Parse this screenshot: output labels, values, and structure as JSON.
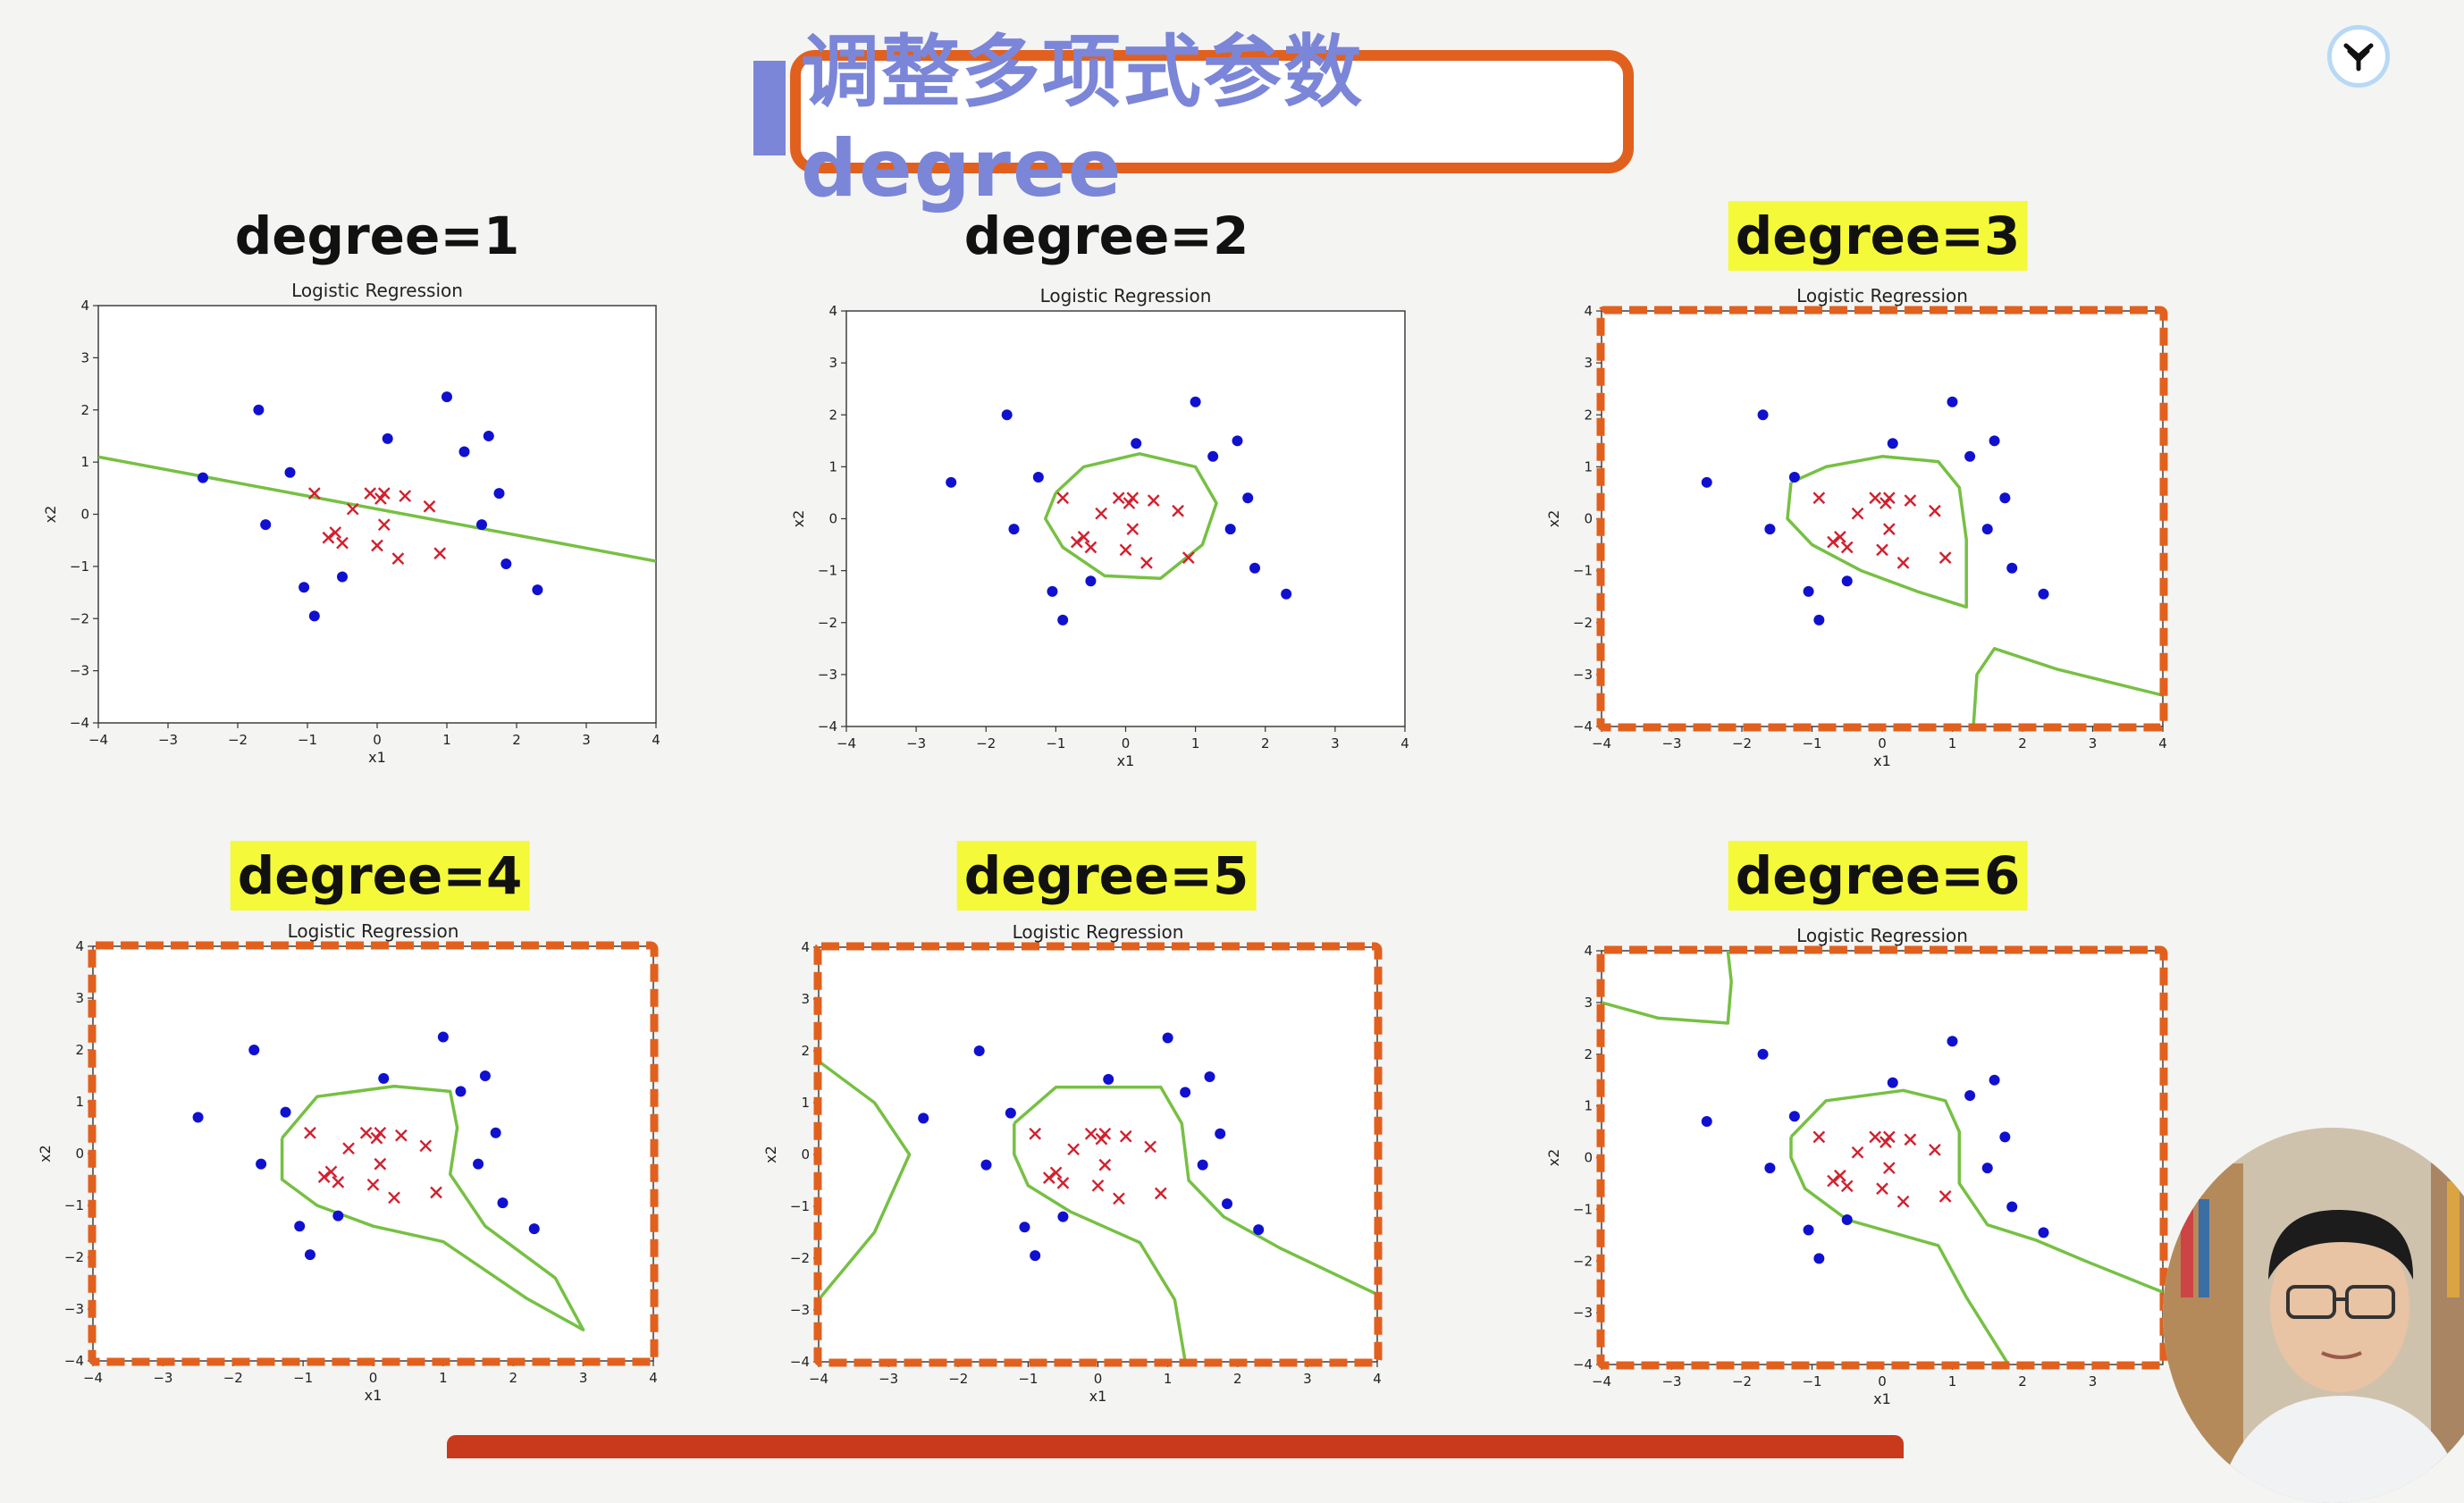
{
  "slide": {
    "title": "调整多项式参数degree"
  },
  "icons": {
    "logo": "brand-logo-icon",
    "presenter": "presenter-video"
  },
  "colors": {
    "class_a_dots": "#1010d0",
    "class_b_crosses": "#d2202e",
    "decision_boundary": "#76c043",
    "highlight_frame": "#e2601d",
    "heading_highlight": "#f4fa3a",
    "title_text": "#7b86d8"
  },
  "chart_data": [
    {
      "heading": "degree=1",
      "highlighted": false,
      "type": "scatter",
      "title": "Logistic Regression",
      "xlabel": "x1",
      "ylabel": "x2",
      "xlim": [
        -4,
        4
      ],
      "ylim": [
        -4,
        4
      ],
      "xticks": [
        -4,
        -3,
        -2,
        -1,
        0,
        1,
        2,
        3,
        4
      ],
      "yticks": [
        -4,
        -3,
        -2,
        -1,
        0,
        1,
        2,
        3,
        4
      ],
      "boundaries": [
        [
          [
            -4,
            1.1
          ],
          [
            4,
            -0.9
          ]
        ]
      ]
    },
    {
      "heading": "degree=2",
      "highlighted": false,
      "type": "scatter",
      "title": "Logistic Regression",
      "xlabel": "x1",
      "ylabel": "x2",
      "xlim": [
        -4,
        4
      ],
      "ylim": [
        -4,
        4
      ],
      "xticks": [
        -4,
        -3,
        -2,
        -1,
        0,
        1,
        2,
        3,
        4
      ],
      "yticks": [
        -4,
        -3,
        -2,
        -1,
        0,
        1,
        2,
        3,
        4
      ],
      "boundaries": [
        [
          [
            -1.0,
            0.5
          ],
          [
            -0.6,
            1.0
          ],
          [
            0.2,
            1.25
          ],
          [
            1.0,
            1.0
          ],
          [
            1.3,
            0.3
          ],
          [
            1.1,
            -0.5
          ],
          [
            0.5,
            -1.15
          ],
          [
            -0.3,
            -1.1
          ],
          [
            -0.9,
            -0.55
          ],
          [
            -1.15,
            0.0
          ],
          [
            -1.0,
            0.5
          ]
        ]
      ]
    },
    {
      "heading": "degree=3",
      "highlighted": true,
      "type": "scatter",
      "title": "Logistic Regression",
      "xlabel": "x1",
      "ylabel": "x2",
      "xlim": [
        -4,
        4
      ],
      "ylim": [
        -4,
        4
      ],
      "xticks": [
        -4,
        -3,
        -2,
        -1,
        0,
        1,
        2,
        3,
        4
      ],
      "yticks": [
        -4,
        -3,
        -2,
        -1,
        0,
        1,
        2,
        3,
        4
      ],
      "boundaries": [
        [
          [
            -1.3,
            0.7
          ],
          [
            -0.8,
            1.0
          ],
          [
            0.0,
            1.2
          ],
          [
            0.8,
            1.1
          ],
          [
            1.1,
            0.6
          ],
          [
            1.2,
            -0.4
          ],
          [
            1.2,
            -1.7
          ],
          [
            0.5,
            -1.4
          ],
          [
            -0.3,
            -1.0
          ],
          [
            -1.0,
            -0.5
          ],
          [
            -1.35,
            0.0
          ],
          [
            -1.3,
            0.7
          ]
        ],
        [
          [
            1.3,
            -4.0
          ],
          [
            1.35,
            -3.0
          ],
          [
            1.6,
            -2.5
          ],
          [
            2.5,
            -2.9
          ],
          [
            4.0,
            -3.4
          ]
        ]
      ]
    },
    {
      "heading": "degree=4",
      "highlighted": true,
      "type": "scatter",
      "title": "Logistic Regression",
      "xlabel": "x1",
      "ylabel": "x2",
      "xlim": [
        -4,
        4
      ],
      "ylim": [
        -4,
        4
      ],
      "xticks": [
        -4,
        -3,
        -2,
        -1,
        0,
        1,
        2,
        3,
        4
      ],
      "yticks": [
        -4,
        -3,
        -2,
        -1,
        0,
        1,
        2,
        3,
        4
      ],
      "boundaries": [
        [
          [
            -1.3,
            0.3
          ],
          [
            -0.8,
            1.1
          ],
          [
            0.3,
            1.3
          ],
          [
            1.1,
            1.2
          ],
          [
            1.2,
            0.5
          ],
          [
            1.1,
            -0.4
          ],
          [
            1.6,
            -1.4
          ],
          [
            2.6,
            -2.4
          ],
          [
            3.0,
            -3.4
          ],
          [
            2.2,
            -2.8
          ],
          [
            1.0,
            -1.7
          ],
          [
            0.0,
            -1.4
          ],
          [
            -0.8,
            -1.0
          ],
          [
            -1.3,
            -0.5
          ],
          [
            -1.3,
            0.3
          ]
        ]
      ]
    },
    {
      "heading": "degree=5",
      "highlighted": true,
      "type": "scatter",
      "title": "Logistic Regression",
      "xlabel": "x1",
      "ylabel": "x2",
      "xlim": [
        -4,
        4
      ],
      "ylim": [
        -4,
        4
      ],
      "xticks": [
        -4,
        -3,
        -2,
        -1,
        0,
        1,
        2,
        3,
        4
      ],
      "yticks": [
        -4,
        -3,
        -2,
        -1,
        0,
        1,
        2,
        3,
        4
      ],
      "boundaries": [
        [
          [
            -1.2,
            0.6
          ],
          [
            -0.6,
            1.3
          ],
          [
            0.4,
            1.3
          ],
          [
            0.9,
            1.3
          ],
          [
            1.2,
            0.6
          ],
          [
            1.3,
            -0.5
          ],
          [
            1.8,
            -1.2
          ],
          [
            2.6,
            -1.8
          ],
          [
            4.0,
            -2.7
          ]
        ],
        [
          [
            1.25,
            -4.0
          ],
          [
            1.1,
            -2.8
          ],
          [
            0.6,
            -1.7
          ],
          [
            -0.4,
            -1.1
          ],
          [
            -1.0,
            -0.6
          ],
          [
            -1.2,
            0.0
          ],
          [
            -1.2,
            0.6
          ]
        ],
        [
          [
            -4.0,
            1.8
          ],
          [
            -3.2,
            1.0
          ],
          [
            -2.7,
            0.0
          ],
          [
            -3.2,
            -1.5
          ],
          [
            -4.0,
            -2.8
          ]
        ]
      ]
    },
    {
      "heading": "degree=6",
      "highlighted": true,
      "type": "scatter",
      "title": "Logistic Regression",
      "xlabel": "x1",
      "ylabel": "x2",
      "xlim": [
        -4,
        4
      ],
      "ylim": [
        -4,
        4
      ],
      "xticks": [
        -4,
        -3,
        -2,
        -1,
        0,
        1,
        2,
        3
      ],
      "yticks": [
        -4,
        -3,
        -2,
        -1,
        0,
        1,
        2,
        3,
        4
      ],
      "boundaries": [
        [
          [
            -1.3,
            0.4
          ],
          [
            -0.8,
            1.1
          ],
          [
            0.3,
            1.3
          ],
          [
            0.9,
            1.1
          ],
          [
            1.1,
            0.5
          ],
          [
            1.1,
            -0.5
          ],
          [
            1.5,
            -1.3
          ],
          [
            2.2,
            -1.6
          ],
          [
            2.9,
            -2.0
          ],
          [
            4.0,
            -2.6
          ]
        ],
        [
          [
            1.8,
            -4.0
          ],
          [
            1.2,
            -2.7
          ],
          [
            0.8,
            -1.7
          ],
          [
            -0.5,
            -1.2
          ],
          [
            -1.1,
            -0.6
          ],
          [
            -1.3,
            0.0
          ],
          [
            -1.3,
            0.4
          ]
        ],
        [
          [
            -4.0,
            3.0
          ],
          [
            -3.2,
            2.7
          ],
          [
            -2.2,
            2.6
          ],
          [
            -2.15,
            3.4
          ],
          [
            -2.2,
            4.0
          ]
        ]
      ]
    }
  ],
  "points": {
    "class_a": [
      [
        -2.5,
        0.7
      ],
      [
        -1.7,
        2.0
      ],
      [
        -1.25,
        0.8
      ],
      [
        -1.6,
        -0.2
      ],
      [
        -1.05,
        -1.4
      ],
      [
        -0.9,
        -1.95
      ],
      [
        -0.5,
        -1.2
      ],
      [
        0.15,
        1.45
      ],
      [
        1.0,
        2.25
      ],
      [
        1.25,
        1.2
      ],
      [
        1.6,
        1.5
      ],
      [
        1.5,
        -0.2
      ],
      [
        1.75,
        0.4
      ],
      [
        1.85,
        -0.95
      ],
      [
        2.3,
        -1.45
      ]
    ],
    "class_b": [
      [
        -0.9,
        0.4
      ],
      [
        -0.35,
        0.1
      ],
      [
        -0.1,
        0.4
      ],
      [
        0.05,
        0.3
      ],
      [
        0.1,
        0.4
      ],
      [
        0.4,
        0.35
      ],
      [
        0.75,
        0.15
      ],
      [
        0.1,
        -0.2
      ],
      [
        -0.6,
        -0.35
      ],
      [
        -0.7,
        -0.45
      ],
      [
        -0.5,
        -0.55
      ],
      [
        0.0,
        -0.6
      ],
      [
        0.3,
        -0.85
      ],
      [
        0.9,
        -0.75
      ]
    ]
  }
}
